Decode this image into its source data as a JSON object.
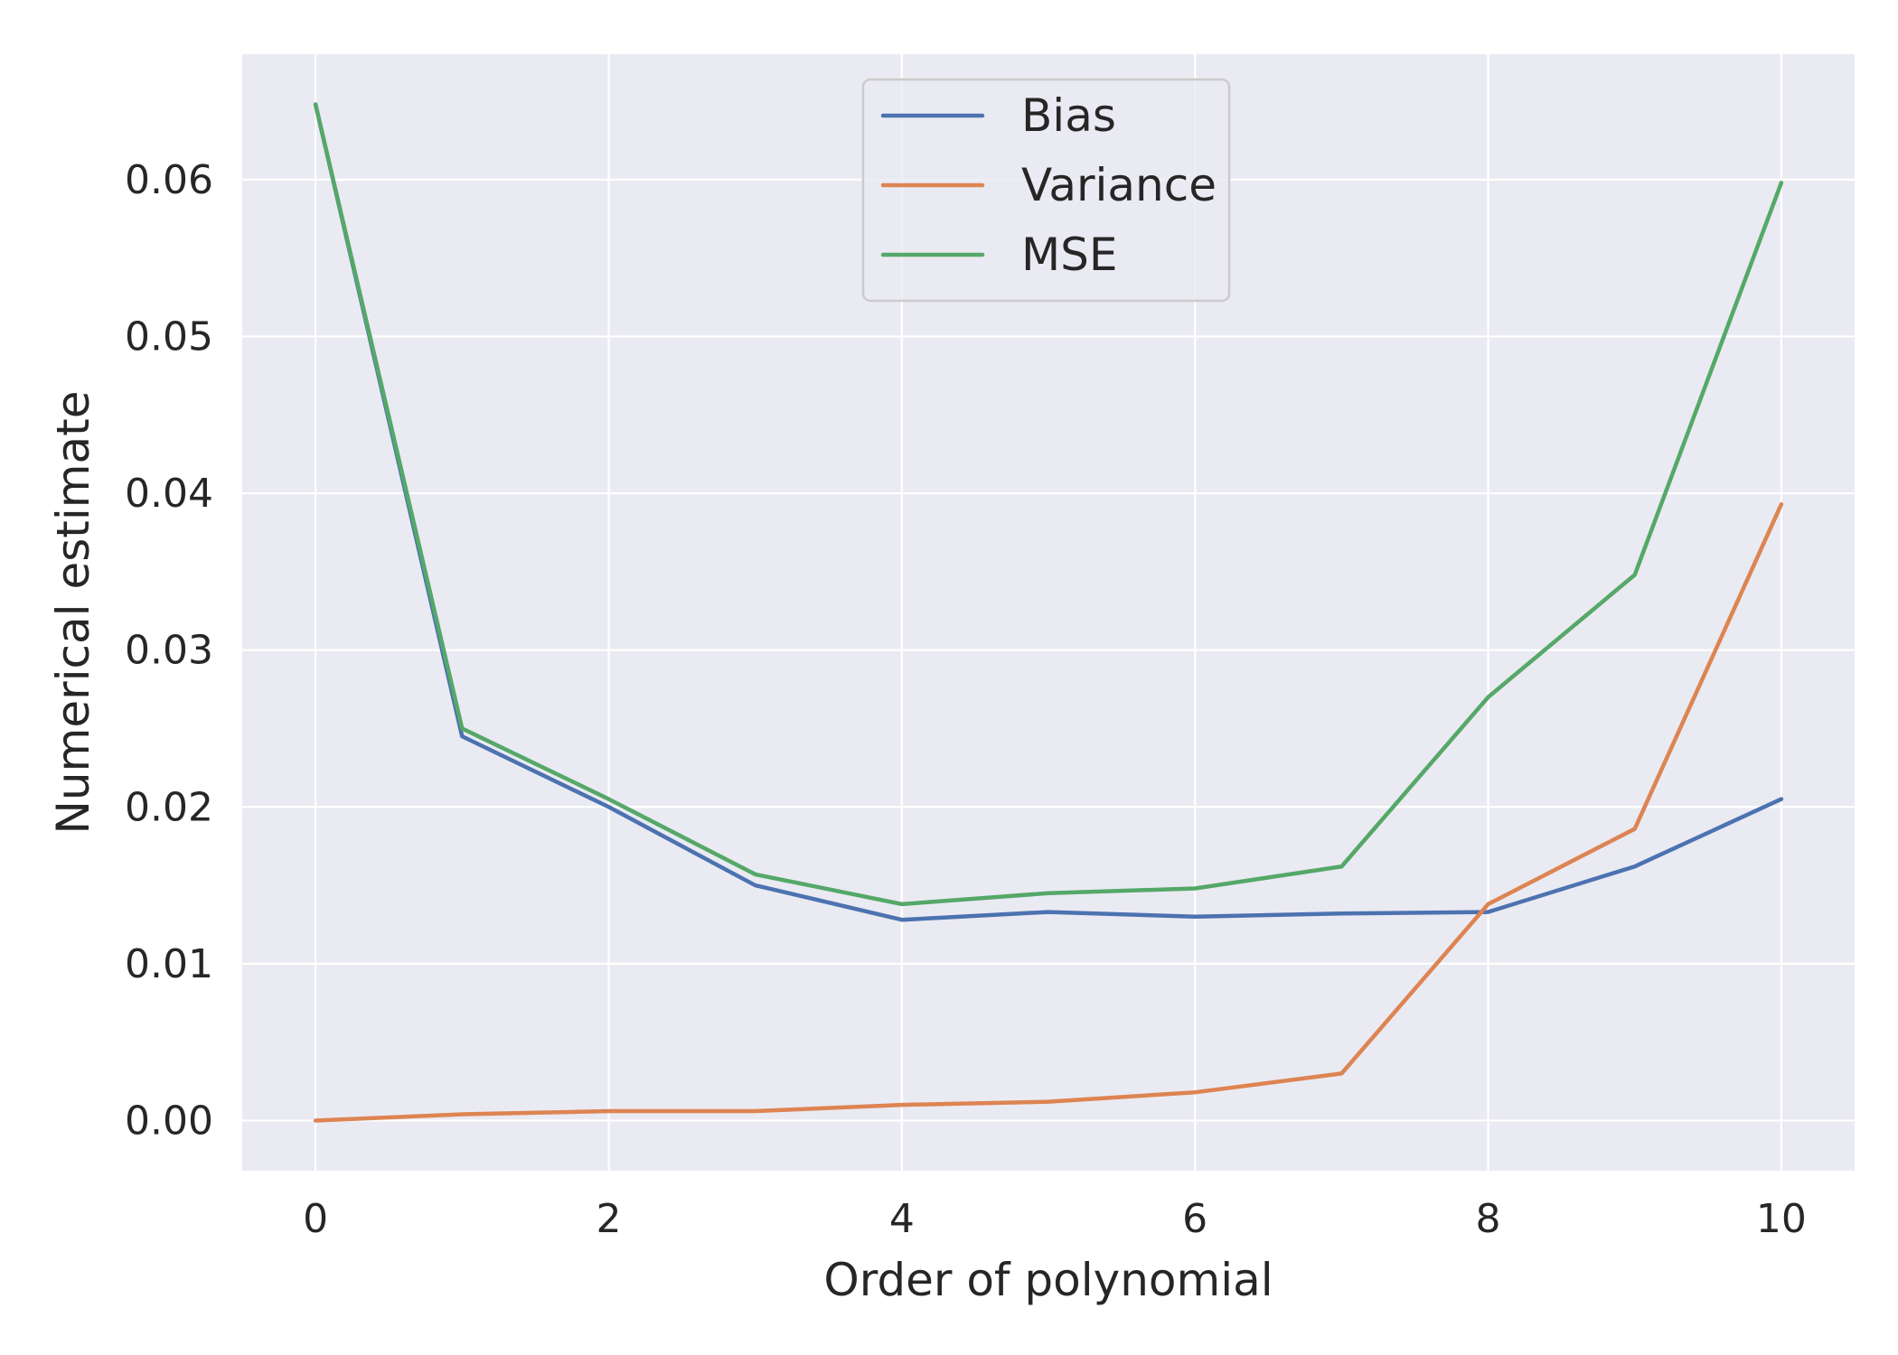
{
  "chart_data": {
    "type": "line",
    "title": "",
    "xlabel": "Order of polynomial",
    "ylabel": "Numerical estimate",
    "x": [
      0,
      1,
      2,
      3,
      4,
      5,
      6,
      7,
      8,
      9,
      10
    ],
    "xlim": [
      -0.5,
      10.5
    ],
    "ylim": [
      -0.0032,
      0.068
    ],
    "xticks": [
      "0",
      "2",
      "4",
      "6",
      "8",
      "10"
    ],
    "yticks": [
      "0.00",
      "0.01",
      "0.02",
      "0.03",
      "0.04",
      "0.05",
      "0.06"
    ],
    "grid": true,
    "legend_position": "upper center",
    "series": [
      {
        "name": "Bias",
        "color": "#4c72b0",
        "values": [
          0.0648,
          0.0245,
          0.02,
          0.015,
          0.0128,
          0.0133,
          0.013,
          0.0132,
          0.0133,
          0.0162,
          0.0205
        ]
      },
      {
        "name": "Variance",
        "color": "#dd8452",
        "values": [
          0.0,
          0.0004,
          0.0006,
          0.0006,
          0.001,
          0.0012,
          0.0018,
          0.003,
          0.0138,
          0.0186,
          0.0393
        ]
      },
      {
        "name": "MSE",
        "color": "#55a868",
        "values": [
          0.0648,
          0.025,
          0.0205,
          0.0157,
          0.0138,
          0.0145,
          0.0148,
          0.0162,
          0.027,
          0.0348,
          0.0598
        ]
      }
    ]
  }
}
